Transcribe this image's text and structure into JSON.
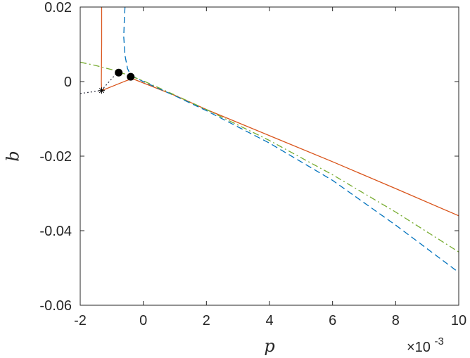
{
  "chart_data": {
    "type": "line",
    "title": "",
    "xlabel": "p",
    "ylabel": "b",
    "x_exponent_label": "×10",
    "x_exponent_power": "-3",
    "xlim": [
      -0.002,
      0.01
    ],
    "ylim": [
      -0.06,
      0.02
    ],
    "xticks": [
      -0.002,
      0,
      0.002,
      0.004,
      0.006,
      0.008,
      0.01
    ],
    "xtick_labels": [
      "-2",
      "0",
      "2",
      "4",
      "6",
      "8",
      "10"
    ],
    "yticks": [
      -0.06,
      -0.04,
      -0.02,
      0,
      0.02
    ],
    "ytick_labels": [
      "-0.06",
      "-0.04",
      "-0.02",
      "0",
      "0.02"
    ],
    "grid": false,
    "legend": "none",
    "series": [
      {
        "color": "#d95319",
        "style": "solid",
        "x": [
          -0.00132,
          -0.00132,
          -0.00133,
          -0.00132,
          -0.00105,
          -0.00055,
          -0.00035,
          0.001,
          0.002,
          0.004,
          0.006,
          0.008,
          0.01
        ],
        "y": [
          0.02,
          0.01,
          0.0,
          -0.0024,
          -0.0015,
          0.0002,
          0.0008,
          -0.0037,
          -0.0075,
          -0.0145,
          -0.0215,
          -0.0287,
          -0.036
        ]
      },
      {
        "color": "#0072bd",
        "style": "dashed",
        "x": [
          -0.00058,
          -0.0006,
          -0.00062,
          -0.00058,
          -0.0005,
          -0.0004,
          -0.0003,
          0.0,
          0.001,
          0.002,
          0.004,
          0.006,
          0.008,
          0.01
        ],
        "y": [
          0.02,
          0.017,
          0.012,
          0.007,
          0.0035,
          0.0017,
          0.0013,
          0.0,
          -0.0038,
          -0.0078,
          -0.0165,
          -0.0265,
          -0.0385,
          -0.0512
        ]
      },
      {
        "color": "#77ac30",
        "style": "dashdot",
        "x": [
          -0.002,
          -0.0015,
          -0.001,
          -0.0005,
          0.0,
          0.001,
          0.002,
          0.004,
          0.006,
          0.008,
          0.01
        ],
        "y": [
          0.0052,
          0.0043,
          0.0032,
          0.0018,
          0.0002,
          -0.0036,
          -0.0075,
          -0.0158,
          -0.025,
          -0.035,
          -0.0457
        ]
      },
      {
        "color": "#3a3a4a",
        "style": "dotted",
        "x": [
          -0.002,
          -0.00133,
          -0.00085
        ],
        "y": [
          -0.0032,
          -0.0024,
          0.0022
        ]
      }
    ],
    "markers": [
      {
        "symbol": "dot",
        "x": -0.00078,
        "y": 0.0024
      },
      {
        "symbol": "dot",
        "x": -0.0004,
        "y": 0.0013
      },
      {
        "symbol": "star",
        "x": -0.00132,
        "y": -0.0024
      }
    ]
  }
}
